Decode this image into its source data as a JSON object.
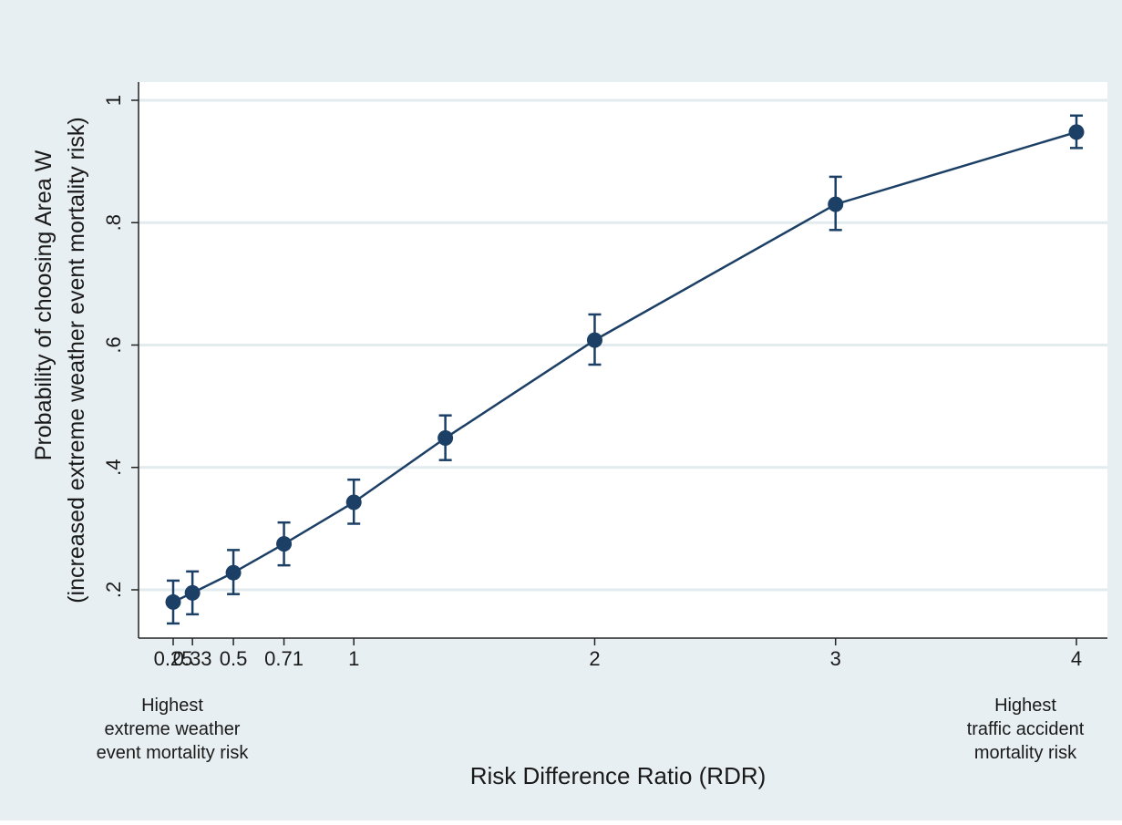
{
  "chart_data": {
    "type": "line",
    "xlabel": "Risk Difference Ratio (RDR)",
    "ylabel_line1": "Probability of choosing Area W",
    "ylabel_line2": "(increased extreme weather event mortality risk)",
    "ylim": [
      0.1,
      1.05
    ],
    "xlim": [
      0.2,
      4.05
    ],
    "grid": true,
    "x_ticks": [
      {
        "value": 0.25,
        "label": "0.25"
      },
      {
        "value": 0.33,
        "label": "0.33"
      },
      {
        "value": 0.5,
        "label": "0.5"
      },
      {
        "value": 0.71,
        "label": "0.71"
      },
      {
        "value": 1,
        "label": "1"
      },
      {
        "value": 2,
        "label": "2"
      },
      {
        "value": 3,
        "label": "3"
      },
      {
        "value": 4,
        "label": "4"
      }
    ],
    "y_ticks": [
      {
        "value": 0.2,
        "label": ".2"
      },
      {
        "value": 0.4,
        "label": ".4"
      },
      {
        "value": 0.6,
        "label": ".6"
      },
      {
        "value": 0.8,
        "label": ".8"
      },
      {
        "value": 1.0,
        "label": "1"
      }
    ],
    "series": [
      {
        "color": "#1c3f66",
        "points": [
          {
            "x": 0.25,
            "y": 0.18,
            "lo": 0.145,
            "hi": 0.215
          },
          {
            "x": 0.33,
            "y": 0.195,
            "lo": 0.16,
            "hi": 0.23
          },
          {
            "x": 0.5,
            "y": 0.228,
            "lo": 0.193,
            "hi": 0.265
          },
          {
            "x": 0.71,
            "y": 0.275,
            "lo": 0.24,
            "hi": 0.31
          },
          {
            "x": 1,
            "y": 0.343,
            "lo": 0.308,
            "hi": 0.38
          },
          {
            "x": 1.38,
            "y": 0.448,
            "lo": 0.412,
            "hi": 0.485
          },
          {
            "x": 2,
            "y": 0.608,
            "lo": 0.568,
            "hi": 0.65
          },
          {
            "x": 3,
            "y": 0.83,
            "lo": 0.788,
            "hi": 0.875
          },
          {
            "x": 4,
            "y": 0.948,
            "lo": 0.922,
            "hi": 0.975
          }
        ]
      }
    ],
    "annotations": {
      "left": [
        "Highest",
        "extreme weather",
        "event mortality risk"
      ],
      "right": [
        "Highest",
        "traffic accident",
        "mortality risk"
      ]
    }
  },
  "colors": {
    "outer_background": "#e8eff2",
    "plot_background": "#ffffff",
    "grid": "#e2ecef",
    "series": "#1c3f66"
  }
}
